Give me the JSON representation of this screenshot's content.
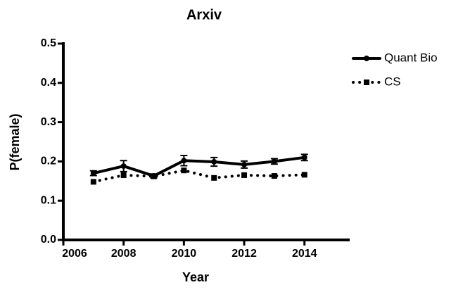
{
  "chart_data": {
    "type": "line",
    "title": "Arxiv",
    "xlabel": "Year",
    "ylabel": "P(female)",
    "x": [
      2007,
      2008,
      2009,
      2010,
      2011,
      2012,
      2013,
      2014
    ],
    "series": [
      {
        "name": "Quant Bio",
        "color": "#000000",
        "style": "solid",
        "values": [
          0.17,
          0.188,
          0.163,
          0.202,
          0.199,
          0.192,
          0.2,
          0.21
        ],
        "errors": [
          0.006,
          0.014,
          0.005,
          0.013,
          0.011,
          0.009,
          0.007,
          0.008
        ]
      },
      {
        "name": "CS",
        "color": "#000000",
        "style": "dotted",
        "values": [
          0.148,
          0.165,
          0.162,
          0.177,
          0.158,
          0.165,
          0.163,
          0.166
        ]
      }
    ],
    "xlim": [
      2006,
      2015.5
    ],
    "xticks": [
      2006,
      2008,
      2010,
      2012,
      2014
    ],
    "ylim": [
      0,
      0.5
    ],
    "yticks": [
      {
        "value": 0,
        "label": "0.0"
      },
      0.1,
      0.2,
      0.3,
      0.4,
      0.5
    ],
    "grid": false,
    "legend": "upper right"
  }
}
